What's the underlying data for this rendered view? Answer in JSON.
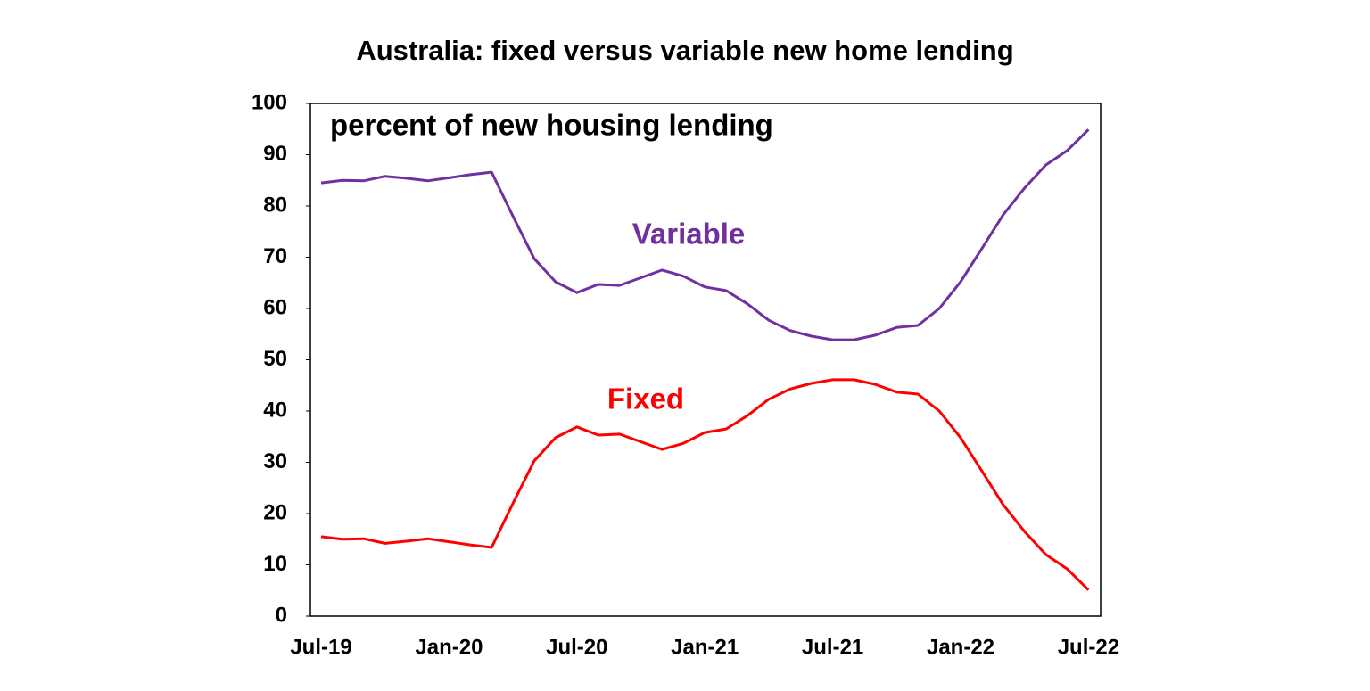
{
  "chart_data": {
    "type": "line",
    "title": "Australia: fixed versus variable new home lending",
    "annotations": [
      "percent of new housing lending",
      "Variable",
      "Fixed"
    ],
    "categories": [
      "Jul-19",
      null,
      null,
      null,
      null,
      null,
      "Jan-20",
      null,
      null,
      null,
      null,
      null,
      "Jul-20",
      null,
      null,
      null,
      null,
      null,
      "Jan-21",
      null,
      null,
      null,
      null,
      null,
      "Jul-21",
      null,
      null,
      null,
      null,
      null,
      "Jan-22",
      null,
      null,
      null,
      null,
      null,
      "Jul-22"
    ],
    "series": [
      {
        "name": "Variable",
        "color": "#7030a0",
        "values": [
          84.5,
          85,
          84.9,
          85.8,
          85.4,
          84.9,
          85.5,
          86.1,
          86.6,
          78,
          69.7,
          65.2,
          63.1,
          64.7,
          64.5,
          66,
          67.5,
          66.3,
          64.2,
          63.5,
          60.9,
          57.7,
          55.7,
          54.6,
          53.9,
          53.9,
          54.8,
          56.3,
          56.7,
          60,
          65.2,
          71.7,
          78.3,
          83.5,
          88,
          90.8,
          94.9
        ]
      },
      {
        "name": "Fixed",
        "color": "#ff0000",
        "values": [
          15.5,
          15,
          15.1,
          14.2,
          14.6,
          15.1,
          14.5,
          13.9,
          13.4,
          22,
          30.3,
          34.8,
          36.9,
          35.3,
          35.5,
          34,
          32.5,
          33.7,
          35.8,
          36.5,
          39.1,
          42.3,
          44.3,
          45.4,
          46.1,
          46.1,
          45.2,
          43.7,
          43.3,
          40,
          34.8,
          28.3,
          21.7,
          16.5,
          12,
          9.2,
          5.1
        ]
      }
    ],
    "ylim": [
      0,
      100
    ],
    "yticks": [
      0,
      10,
      20,
      30,
      40,
      50,
      60,
      70,
      80,
      90,
      100
    ],
    "grid": false
  }
}
